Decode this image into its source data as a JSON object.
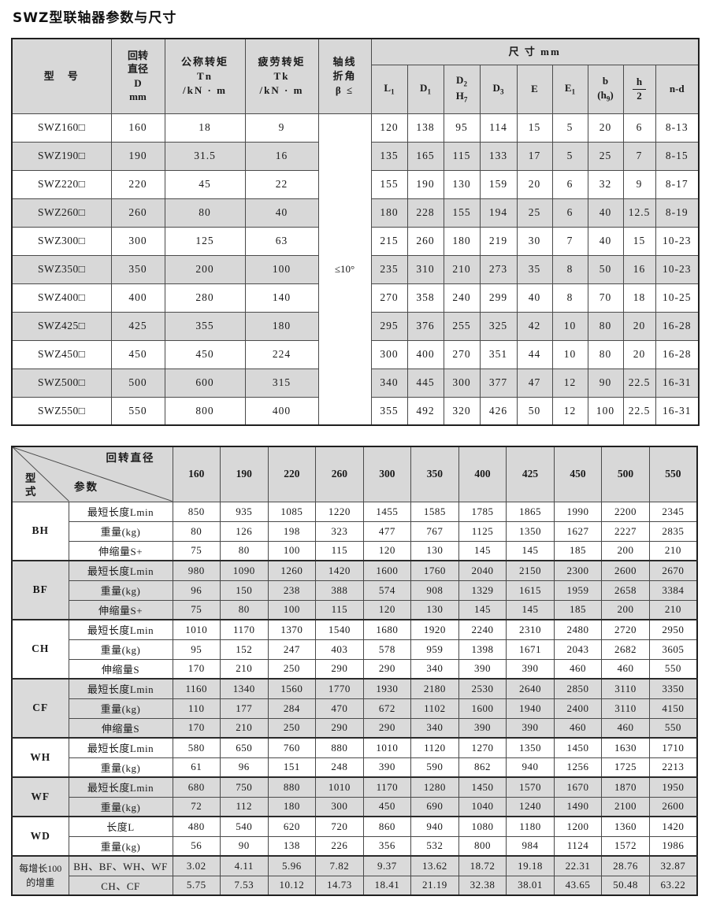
{
  "page": {
    "title": "SWZ型联轴器参数与尺寸"
  },
  "colors": {
    "row_gray": "#d8d8d8",
    "border_dark": "#1f1f1f",
    "border_inner": "#4a4a4a"
  },
  "table1": {
    "header": {
      "model": "型　号",
      "d": "回转\n直径\nD\nmm",
      "tn": "公称转矩\nTn\n/kN · m",
      "tk": "疲劳转矩\nTk\n/kN · m",
      "beta": "轴线\n折角\nβ ≤",
      "size": "尺 寸 mm",
      "size_cols": {
        "l1": {
          "base": "L",
          "sub": "1"
        },
        "d1": {
          "base": "D",
          "sub": "1"
        },
        "d2h7": {
          "top": "D",
          "top_sub": "2",
          "bot": "H",
          "bot_sub": "7"
        },
        "d3": {
          "base": "D",
          "sub": "3"
        },
        "e": "E",
        "e1": {
          "base": "E",
          "sub": "1"
        },
        "b_h9": {
          "top": "b",
          "bot_pre": "(h",
          "bot_sub": "9",
          "bot_post": ")"
        },
        "h2": {
          "num": "h",
          "den": "2"
        },
        "nd": "n-d"
      }
    },
    "beta_value": "≤10°",
    "rows": [
      {
        "model": "SWZ160□",
        "d": "160",
        "tn": "18",
        "tk": "9",
        "dims": [
          "120",
          "138",
          "95",
          "114",
          "15",
          "5",
          "20",
          "6",
          "8-13"
        ]
      },
      {
        "model": "SWZ190□",
        "d": "190",
        "tn": "31.5",
        "tk": "16",
        "dims": [
          "135",
          "165",
          "115",
          "133",
          "17",
          "5",
          "25",
          "7",
          "8-15"
        ]
      },
      {
        "model": "SWZ220□",
        "d": "220",
        "tn": "45",
        "tk": "22",
        "dims": [
          "155",
          "190",
          "130",
          "159",
          "20",
          "6",
          "32",
          "9",
          "8-17"
        ]
      },
      {
        "model": "SWZ260□",
        "d": "260",
        "tn": "80",
        "tk": "40",
        "dims": [
          "180",
          "228",
          "155",
          "194",
          "25",
          "6",
          "40",
          "12.5",
          "8-19"
        ]
      },
      {
        "model": "SWZ300□",
        "d": "300",
        "tn": "125",
        "tk": "63",
        "dims": [
          "215",
          "260",
          "180",
          "219",
          "30",
          "7",
          "40",
          "15",
          "10-23"
        ]
      },
      {
        "model": "SWZ350□",
        "d": "350",
        "tn": "200",
        "tk": "100",
        "dims": [
          "235",
          "310",
          "210",
          "273",
          "35",
          "8",
          "50",
          "16",
          "10-23"
        ]
      },
      {
        "model": "SWZ400□",
        "d": "400",
        "tn": "280",
        "tk": "140",
        "dims": [
          "270",
          "358",
          "240",
          "299",
          "40",
          "8",
          "70",
          "18",
          "10-25"
        ]
      },
      {
        "model": "SWZ425□",
        "d": "425",
        "tn": "355",
        "tk": "180",
        "dims": [
          "295",
          "376",
          "255",
          "325",
          "42",
          "10",
          "80",
          "20",
          "16-28"
        ]
      },
      {
        "model": "SWZ450□",
        "d": "450",
        "tn": "450",
        "tk": "224",
        "dims": [
          "300",
          "400",
          "270",
          "351",
          "44",
          "10",
          "80",
          "20",
          "16-28"
        ]
      },
      {
        "model": "SWZ500□",
        "d": "500",
        "tn": "600",
        "tk": "315",
        "dims": [
          "340",
          "445",
          "300",
          "377",
          "47",
          "12",
          "90",
          "22.5",
          "16-31"
        ]
      },
      {
        "model": "SWZ550□",
        "d": "550",
        "tn": "800",
        "tk": "400",
        "dims": [
          "355",
          "492",
          "320",
          "426",
          "50",
          "12",
          "100",
          "22.5",
          "16-31"
        ]
      }
    ]
  },
  "table2": {
    "corner": {
      "top": "回转直径",
      "mid": "参数",
      "left": "型\n式"
    },
    "columns": [
      "160",
      "190",
      "220",
      "260",
      "300",
      "350",
      "400",
      "425",
      "450",
      "500",
      "550"
    ],
    "groups": [
      {
        "type": "BH",
        "rows": [
          {
            "label": "最短长度Lmin",
            "values": [
              "850",
              "935",
              "1085",
              "1220",
              "1455",
              "1585",
              "1785",
              "1865",
              "1990",
              "2200",
              "2345"
            ]
          },
          {
            "label": "重量(kg)",
            "values": [
              "80",
              "126",
              "198",
              "323",
              "477",
              "767",
              "1125",
              "1350",
              "1627",
              "2227",
              "2835"
            ]
          },
          {
            "label": "伸缩量S+",
            "values": [
              "75",
              "80",
              "100",
              "115",
              "120",
              "130",
              "145",
              "145",
              "185",
              "200",
              "210"
            ]
          }
        ]
      },
      {
        "type": "BF",
        "rows": [
          {
            "label": "最短长度Lmin",
            "values": [
              "980",
              "1090",
              "1260",
              "1420",
              "1600",
              "1760",
              "2040",
              "2150",
              "2300",
              "2600",
              "2670"
            ]
          },
          {
            "label": "重量(kg)",
            "values": [
              "96",
              "150",
              "238",
              "388",
              "574",
              "908",
              "1329",
              "1615",
              "1959",
              "2658",
              "3384"
            ]
          },
          {
            "label": "伸缩量S+",
            "values": [
              "75",
              "80",
              "100",
              "115",
              "120",
              "130",
              "145",
              "145",
              "185",
              "200",
              "210"
            ]
          }
        ]
      },
      {
        "type": "CH",
        "rows": [
          {
            "label": "最短长度Lmin",
            "values": [
              "1010",
              "1170",
              "1370",
              "1540",
              "1680",
              "1920",
              "2240",
              "2310",
              "2480",
              "2720",
              "2950"
            ]
          },
          {
            "label": "重量(kg)",
            "values": [
              "95",
              "152",
              "247",
              "403",
              "578",
              "959",
              "1398",
              "1671",
              "2043",
              "2682",
              "3605"
            ]
          },
          {
            "label": "伸缩量S",
            "values": [
              "170",
              "210",
              "250",
              "290",
              "290",
              "340",
              "390",
              "390",
              "460",
              "460",
              "550"
            ]
          }
        ]
      },
      {
        "type": "CF",
        "rows": [
          {
            "label": "最短长度Lmin",
            "values": [
              "1160",
              "1340",
              "1560",
              "1770",
              "1930",
              "2180",
              "2530",
              "2640",
              "2850",
              "3110",
              "3350"
            ]
          },
          {
            "label": "重量(kg)",
            "values": [
              "110",
              "177",
              "284",
              "470",
              "672",
              "1102",
              "1600",
              "1940",
              "2400",
              "3110",
              "4150"
            ]
          },
          {
            "label": "伸缩量S",
            "values": [
              "170",
              "210",
              "250",
              "290",
              "290",
              "340",
              "390",
              "390",
              "460",
              "460",
              "550"
            ]
          }
        ]
      },
      {
        "type": "WH",
        "rows": [
          {
            "label": "最短长度Lmin",
            "values": [
              "580",
              "650",
              "760",
              "880",
              "1010",
              "1120",
              "1270",
              "1350",
              "1450",
              "1630",
              "1710"
            ]
          },
          {
            "label": "重量(kg)",
            "values": [
              "61",
              "96",
              "151",
              "248",
              "390",
              "590",
              "862",
              "940",
              "1256",
              "1725",
              "2213"
            ]
          }
        ]
      },
      {
        "type": "WF",
        "rows": [
          {
            "label": "最短长度Lmin",
            "values": [
              "680",
              "750",
              "880",
              "1010",
              "1170",
              "1280",
              "1450",
              "1570",
              "1670",
              "1870",
              "1950"
            ]
          },
          {
            "label": "重量(kg)",
            "values": [
              "72",
              "112",
              "180",
              "300",
              "450",
              "690",
              "1040",
              "1240",
              "1490",
              "2100",
              "2600"
            ]
          }
        ]
      },
      {
        "type": "WD",
        "rows": [
          {
            "label": "长度L",
            "values": [
              "480",
              "540",
              "620",
              "720",
              "860",
              "940",
              "1080",
              "1180",
              "1200",
              "1360",
              "1420"
            ]
          },
          {
            "label": "重量(kg)",
            "values": [
              "56",
              "90",
              "138",
              "226",
              "356",
              "532",
              "800",
              "984",
              "1124",
              "1572",
              "1986"
            ]
          }
        ]
      },
      {
        "type": "每增长100\n的增重",
        "small": true,
        "rows": [
          {
            "label": "BH、BF、WH、WF",
            "values": [
              "3.02",
              "4.11",
              "5.96",
              "7.82",
              "9.37",
              "13.62",
              "18.72",
              "19.18",
              "22.31",
              "28.76",
              "32.87"
            ]
          },
          {
            "label": "CH、CF",
            "values": [
              "5.75",
              "7.53",
              "10.12",
              "14.73",
              "18.41",
              "21.19",
              "32.38",
              "38.01",
              "43.65",
              "50.48",
              "63.22"
            ]
          }
        ]
      }
    ]
  }
}
